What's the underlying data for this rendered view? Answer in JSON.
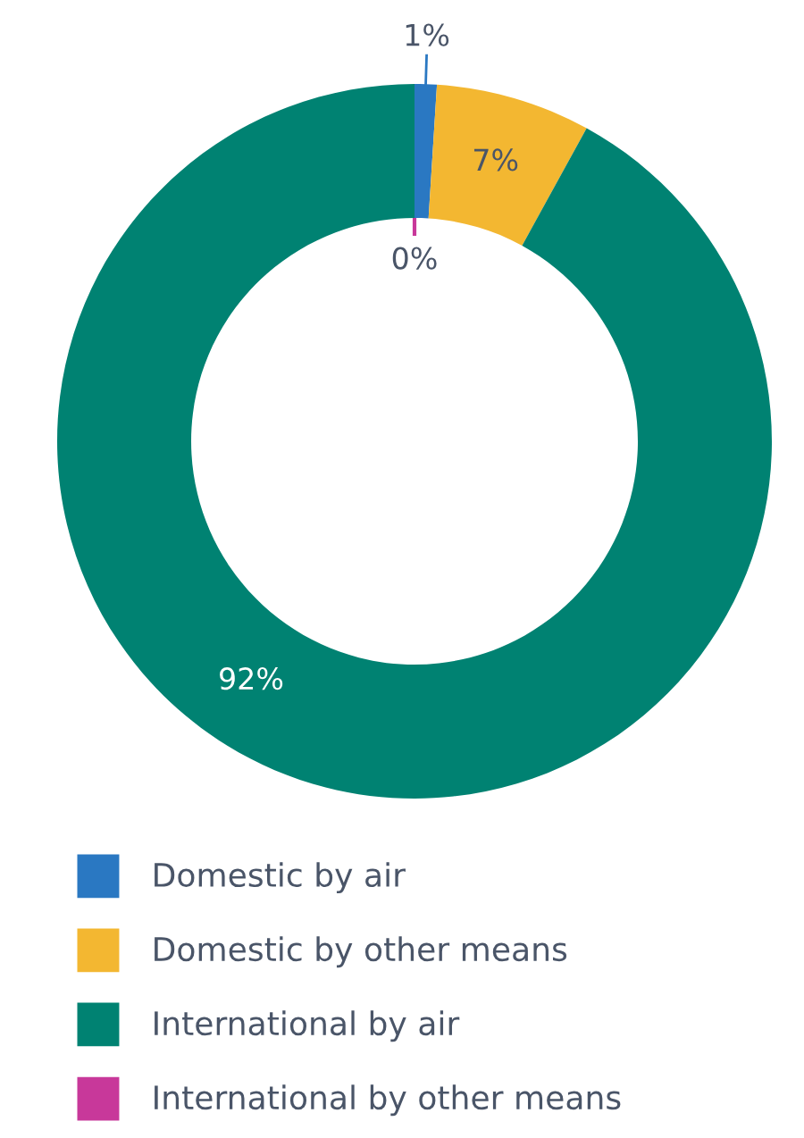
{
  "chart_data": {
    "type": "donut",
    "categories": [
      "Domestic by air",
      "Domestic by other means",
      "International by air",
      "International by other means"
    ],
    "values": [
      1,
      7,
      92,
      0
    ],
    "colors": [
      "#2a78c2",
      "#f3b731",
      "#008272",
      "#c8389a"
    ],
    "value_labels": [
      "1%",
      "7%",
      "92%",
      "0%"
    ],
    "legend": "bottom"
  }
}
